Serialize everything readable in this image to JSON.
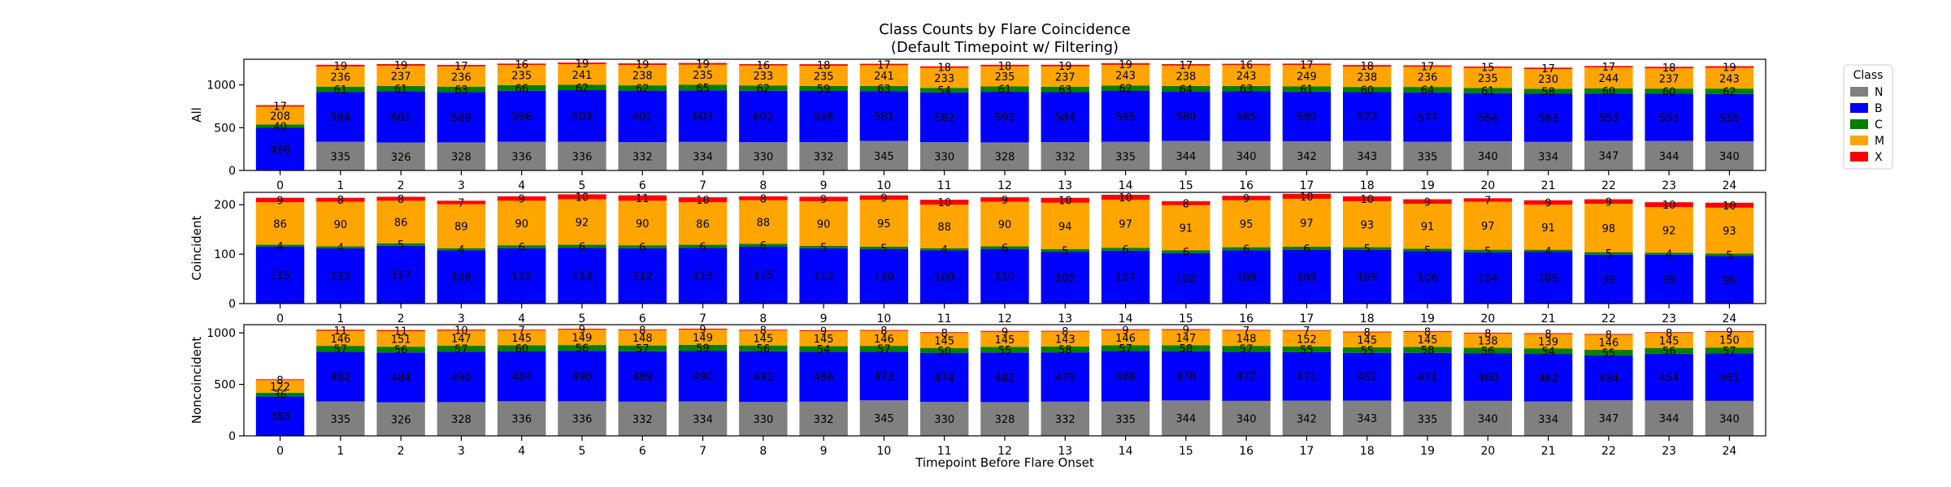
{
  "chart_data": {
    "type": "bar",
    "stacked": true,
    "title": "Class Counts by Flare Coincidence",
    "subtitle": "(Default Timepoint w/ Filtering)",
    "xlabel": "Timepoint Before Flare Onset",
    "categories": [
      "0",
      "1",
      "2",
      "3",
      "4",
      "5",
      "6",
      "7",
      "8",
      "9",
      "10",
      "11",
      "12",
      "13",
      "14",
      "15",
      "16",
      "17",
      "18",
      "19",
      "20",
      "21",
      "22",
      "23",
      "24"
    ],
    "legend": {
      "title": "Class",
      "position": "outside-right",
      "entries": [
        "N",
        "B",
        "C",
        "M",
        "X"
      ]
    },
    "colors": {
      "N": "#808080",
      "B": "#0000ff",
      "C": "#008000",
      "M": "#ffa500",
      "X": "#ff0000"
    },
    "grid": false,
    "panels": [
      {
        "ylabel": "All",
        "ylim": [
          0,
          1300
        ],
        "yticks": [
          0,
          500,
          1000
        ],
        "series": [
          {
            "name": "N",
            "values": [
              0,
              335,
              326,
              328,
              336,
              336,
              332,
              334,
              330,
              332,
              345,
              330,
              328,
              332,
              335,
              344,
              340,
              342,
              343,
              335,
              340,
              334,
              347,
              344,
              340
            ]
          },
          {
            "name": "B",
            "values": [
              498,
              584,
              601,
              589,
              596,
              603,
              601,
              603,
              602,
              598,
              581,
              582,
              593,
              584,
              595,
              580,
              585,
              580,
              573,
              577,
              564,
              563,
              553,
              553,
              555
            ]
          },
          {
            "name": "C",
            "values": [
              40,
              61,
              61,
              63,
              66,
              62,
              62,
              65,
              62,
              59,
              63,
              54,
              61,
              63,
              62,
              64,
              63,
              61,
              60,
              64,
              61,
              58,
              60,
              60,
              62
            ]
          },
          {
            "name": "M",
            "values": [
              208,
              236,
              237,
              236,
              235,
              241,
              238,
              235,
              233,
              235,
              241,
              233,
              235,
              237,
              243,
              238,
              243,
              249,
              238,
              236,
              235,
              230,
              244,
              237,
              243
            ]
          },
          {
            "name": "X",
            "values": [
              17,
              19,
              19,
              17,
              16,
              19,
              19,
              19,
              16,
              18,
              17,
              18,
              18,
              19,
              19,
              17,
              16,
              17,
              18,
              17,
              15,
              17,
              17,
              18,
              19
            ]
          }
        ]
      },
      {
        "ylabel": "Coincident",
        "ylim": [
          0,
          225
        ],
        "yticks": [
          0,
          100,
          200
        ],
        "series": [
          {
            "name": "N",
            "values": [
              0,
              0,
              0,
              0,
              0,
              0,
              0,
              0,
              0,
              0,
              0,
              0,
              0,
              0,
              0,
              0,
              0,
              0,
              0,
              0,
              0,
              0,
              0,
              0,
              0
            ]
          },
          {
            "name": "B",
            "values": [
              115,
              112,
              117,
              108,
              112,
              113,
              112,
              113,
              115,
              112,
              110,
              108,
              110,
              105,
              107,
              102,
              108,
              109,
              109,
              106,
              104,
              105,
              99,
              99,
              96
            ]
          },
          {
            "name": "C",
            "values": [
              4,
              4,
              5,
              4,
              6,
              6,
              6,
              6,
              6,
              5,
              5,
              4,
              6,
              5,
              6,
              6,
              6,
              6,
              5,
              5,
              5,
              4,
              5,
              4,
              5
            ]
          },
          {
            "name": "M",
            "values": [
              86,
              90,
              86,
              89,
              90,
              92,
              90,
              86,
              88,
              90,
              95,
              88,
              90,
              94,
              97,
              91,
              95,
              97,
              93,
              91,
              97,
              91,
              98,
              92,
              93
            ]
          },
          {
            "name": "X",
            "values": [
              9,
              8,
              8,
              7,
              9,
              10,
              11,
              10,
              8,
              9,
              9,
              10,
              9,
              10,
              10,
              8,
              9,
              10,
              10,
              9,
              7,
              9,
              9,
              10,
              10
            ]
          }
        ]
      },
      {
        "ylabel": "Noncoincident",
        "ylim": [
          0,
          1080
        ],
        "yticks": [
          0,
          500,
          1000
        ],
        "series": [
          {
            "name": "N",
            "values": [
              0,
              335,
              326,
              328,
              336,
              336,
              332,
              334,
              330,
              332,
              345,
              330,
              328,
              332,
              335,
              344,
              340,
              342,
              343,
              335,
              340,
              334,
              347,
              344,
              340
            ]
          },
          {
            "name": "B",
            "values": [
              383,
              482,
              484,
              490,
              484,
              490,
              489,
              490,
              492,
              486,
              472,
              474,
              482,
              479,
              488,
              478,
              477,
              471,
              462,
              471,
              460,
              462,
              434,
              454,
              461
            ]
          },
          {
            "name": "C",
            "values": [
              36,
              57,
              56,
              57,
              60,
              56,
              57,
              59,
              56,
              54,
              57,
              50,
              55,
              58,
              57,
              58,
              57,
              55,
              55,
              58,
              56,
              54,
              55,
              56,
              57
            ]
          },
          {
            "name": "M",
            "values": [
              122,
              146,
              151,
              147,
              145,
              149,
              148,
              149,
              145,
              145,
              146,
              145,
              145,
              143,
              146,
              147,
              148,
              152,
              145,
              145,
              138,
              139,
              146,
              145,
              150
            ]
          },
          {
            "name": "X",
            "values": [
              8,
              11,
              11,
              10,
              7,
              9,
              8,
              9,
              8,
              9,
              8,
              8,
              9,
              8,
              9,
              9,
              7,
              7,
              8,
              8,
              8,
              8,
              8,
              8,
              9
            ]
          }
        ]
      }
    ]
  }
}
